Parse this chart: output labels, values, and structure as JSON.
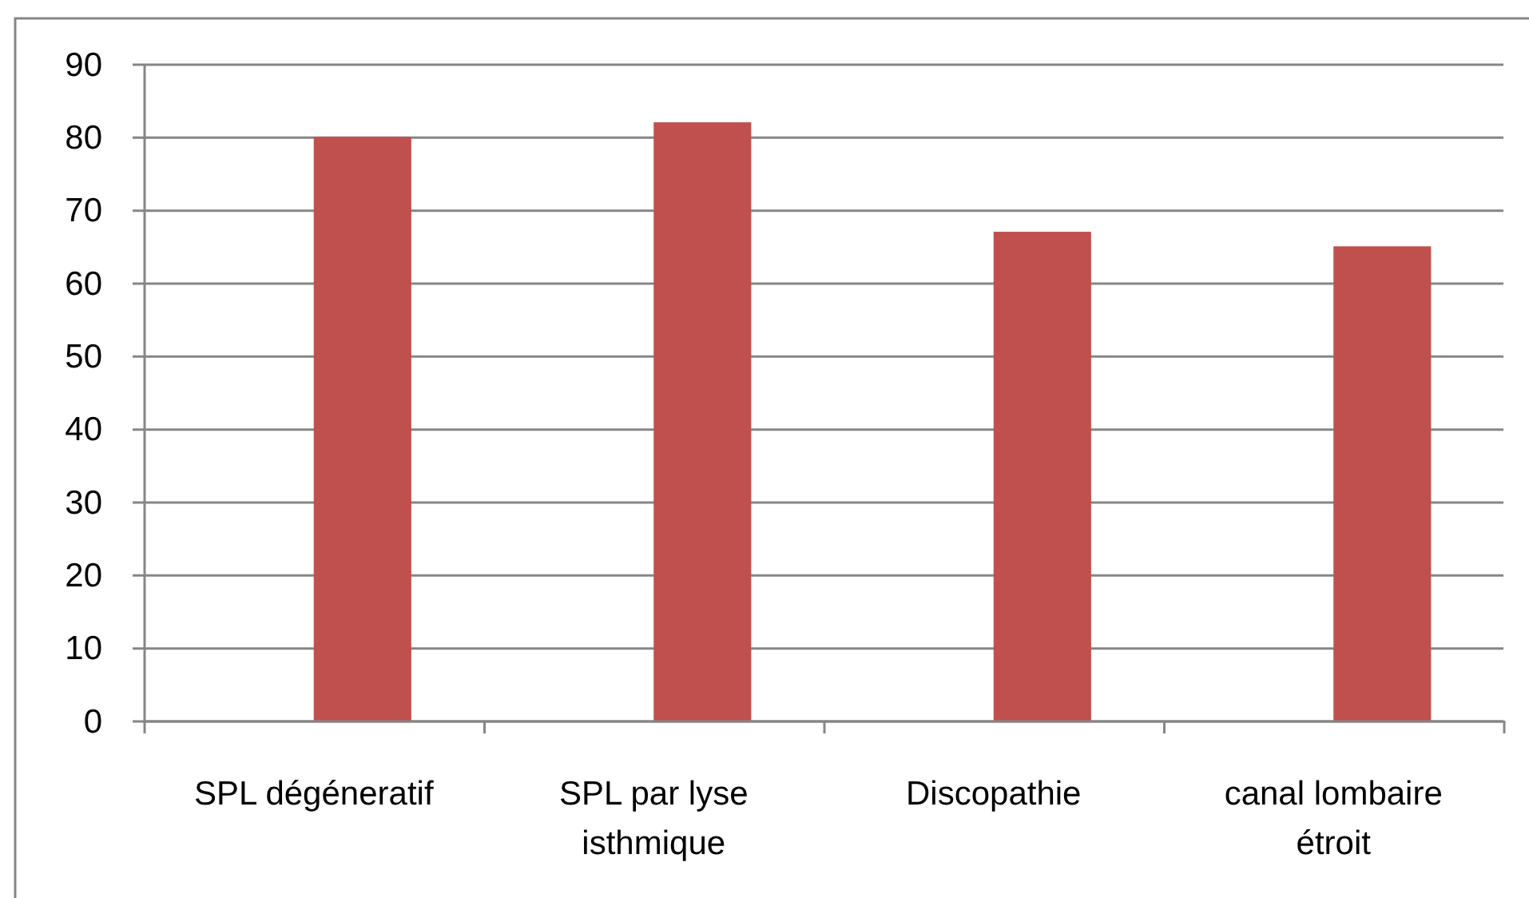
{
  "chart_data": {
    "type": "bar",
    "categories": [
      "SPL dégéneratif",
      "SPL par lyse isthmique",
      "Discopathie",
      "canal lombaire étroit"
    ],
    "values": [
      80,
      82,
      67,
      65
    ],
    "color": "#c0504d",
    "ylim": [
      0,
      90
    ],
    "yticks": [
      0,
      10,
      20,
      30,
      40,
      50,
      60,
      70,
      80,
      90
    ],
    "grid": "y"
  }
}
